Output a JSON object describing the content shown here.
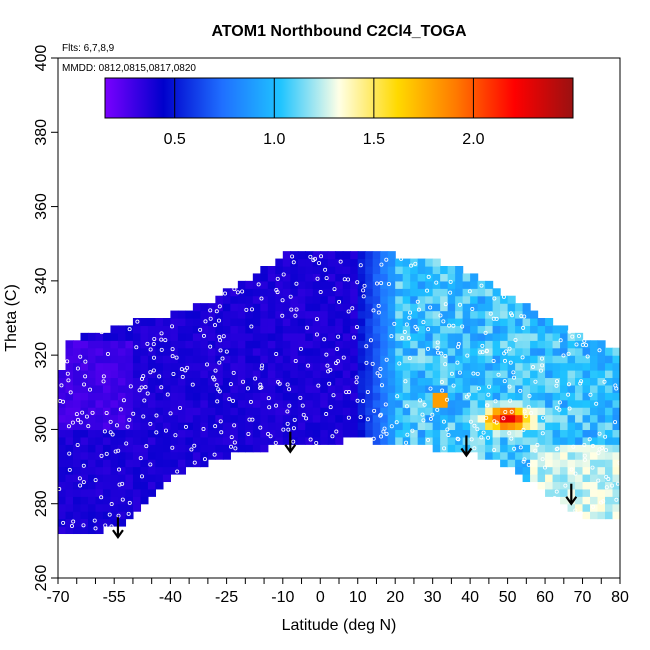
{
  "chart_data": {
    "type": "heatmap",
    "title": "ATOM1 Northbound C2Cl4_TOGA",
    "notes": [
      "Flts: 6,7,8,9",
      "MMDD: 0812,0815,0817,0820"
    ],
    "xlabel": "Latitude (deg N)",
    "ylabel": "Theta (C)",
    "xlim": [
      -70,
      80
    ],
    "ylim": [
      260,
      400
    ],
    "xticks": [
      -70,
      -55,
      -40,
      -25,
      -10,
      0,
      10,
      20,
      30,
      40,
      50,
      60,
      70,
      80
    ],
    "xtick_labels": [
      "-70",
      "-55",
      "-40",
      "-25",
      "-10",
      "0",
      "10",
      "20",
      "30",
      "40",
      "50",
      "60",
      "70",
      "80"
    ],
    "yticks": [
      260,
      280,
      300,
      320,
      340,
      360,
      380,
      400
    ],
    "ytick_labels": [
      "260",
      "280",
      "300",
      "320",
      "340",
      "360",
      "380",
      "400"
    ],
    "colorbar": {
      "range": [
        0.15,
        2.5
      ],
      "ticks": [
        0.5,
        1.0,
        1.5,
        2.0
      ],
      "tick_labels": [
        "0.5",
        "1.0",
        "1.5",
        "2.0"
      ],
      "colors": [
        "#7a00ff",
        "#0000cc",
        "#1f6fff",
        "#1fc4ff",
        "#ffffe6",
        "#ffd900",
        "#ff7a00",
        "#ff0000",
        "#9a1111"
      ]
    },
    "field_outline": {
      "top_theta": [
        [
          -70,
          312
        ],
        [
          -67,
          324
        ],
        [
          -60,
          326
        ],
        [
          -50,
          329
        ],
        [
          -40,
          331
        ],
        [
          -30,
          334
        ],
        [
          -20,
          340
        ],
        [
          -15,
          343
        ],
        [
          -10,
          347
        ],
        [
          10,
          347
        ],
        [
          20,
          347
        ],
        [
          30,
          346
        ],
        [
          40,
          342
        ],
        [
          50,
          336
        ],
        [
          60,
          330
        ],
        [
          70,
          325
        ],
        [
          80,
          322
        ]
      ],
      "bottom_theta": [
        [
          -70,
          272
        ],
        [
          -60,
          272
        ],
        [
          -50,
          276
        ],
        [
          -45,
          283
        ],
        [
          -38,
          288
        ],
        [
          -30,
          291
        ],
        [
          -20,
          294
        ],
        [
          -10,
          296
        ],
        [
          0,
          296
        ],
        [
          10,
          298
        ],
        [
          20,
          296
        ],
        [
          30,
          295
        ],
        [
          40,
          294
        ],
        [
          50,
          290
        ],
        [
          60,
          283
        ],
        [
          70,
          277
        ],
        [
          80,
          276
        ]
      ]
    },
    "features": [
      {
        "label": "max",
        "lat": 50,
        "theta": 303,
        "value": 2.3
      },
      {
        "label": "background_south",
        "lat_range": [
          -70,
          10
        ],
        "value": 0.4
      },
      {
        "label": "background_north",
        "lat_range": [
          15,
          80
        ],
        "value": 1.0
      }
    ],
    "arrows_lat": [
      -54,
      -8,
      39,
      67
    ],
    "arrows_theta_tip": [
      271,
      294,
      293,
      280
    ]
  }
}
